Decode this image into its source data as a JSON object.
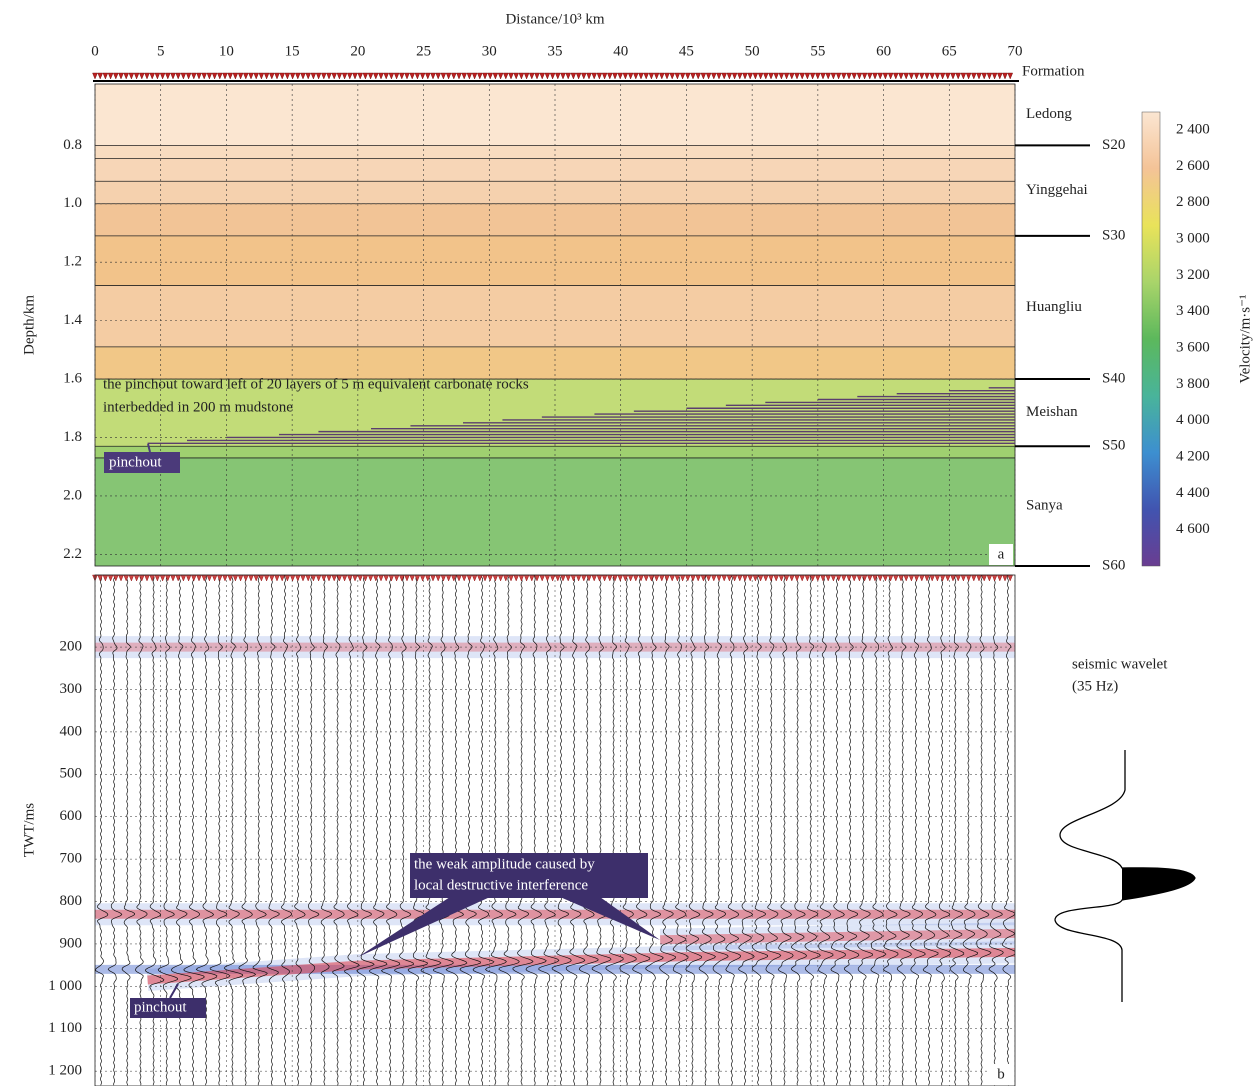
{
  "chart_data": [
    {
      "type": "layer-model",
      "x_label": "Distance/10³ km",
      "y_label": "Depth/km",
      "xlim": [
        0,
        70
      ],
      "xticks": [
        0,
        5,
        10,
        15,
        20,
        25,
        30,
        35,
        40,
        45,
        50,
        55,
        60,
        65,
        70
      ],
      "ylim": [
        0.59,
        2.24
      ],
      "yticks": [
        0.8,
        {
          "value": 1,
          "label": "1.0"
        },
        1.2,
        1.4,
        1.6,
        1.8,
        {
          "value": 2,
          "label": "2.0"
        },
        2.2
      ],
      "grid": true,
      "column_header": "Formation",
      "formations": [
        "Ledong",
        "Yinggehai",
        "Huangliu",
        "Meishan",
        "Sanya"
      ],
      "surfaces": [
        {
          "name": "S20",
          "depth": 0.8
        },
        {
          "name": "S30",
          "depth": 1.11
        },
        {
          "name": "S40",
          "depth": 1.6
        },
        {
          "name": "S50",
          "depth": 1.83
        },
        {
          "name": "S60",
          "depth": 2.24
        }
      ],
      "boundaries": [
        0.8,
        0.845,
        0.923,
        1.0,
        1.11,
        1.28,
        1.49,
        1.6,
        1.83,
        1.87
      ],
      "layer_colors": [
        "#fbe6d1",
        "#f8dcc0",
        "#f7d6b7",
        "#f5d1ae",
        "#f2c496",
        "#f2c38a",
        "#f4cca3",
        "#f1c787",
        "#c2dc78",
        "#9fd070",
        "#86c574"
      ],
      "wedge": {
        "x_start": [
          4,
          7,
          10,
          14,
          17,
          21,
          24,
          28,
          31,
          34,
          38,
          41,
          45,
          48,
          51,
          55,
          58,
          61,
          65,
          68
        ],
        "depth": [
          1.82,
          1.81,
          1.8,
          1.79,
          1.78,
          1.77,
          1.76,
          1.75,
          1.74,
          1.73,
          1.72,
          1.71,
          1.7,
          1.69,
          1.68,
          1.67,
          1.66,
          1.65,
          1.64,
          1.63
        ],
        "color": "#5b3f6e"
      },
      "annotation": [
        "the pinchout toward left of 20 layers of 5 m equivalent carbonate rocks",
        "interbedded in 200 m mudstone"
      ],
      "pinchout_label": "pinchout",
      "panel_label": "a",
      "colorbar": {
        "label": "Velocity/m·s⁻¹",
        "clim": [
          2300,
          4800
        ],
        "ticks": [
          {
            "value": 2400,
            "label": "2 400"
          },
          {
            "value": 2600,
            "label": "2 600"
          },
          {
            "value": 2800,
            "label": "2 800"
          },
          {
            "value": 3000,
            "label": "3 000"
          },
          {
            "value": 3200,
            "label": "3 200"
          },
          {
            "value": 3400,
            "label": "3 400"
          },
          {
            "value": 3600,
            "label": "3 600"
          },
          {
            "value": 3800,
            "label": "3 800"
          },
          {
            "value": 4000,
            "label": "4 000"
          },
          {
            "value": 4200,
            "label": "4 200"
          },
          {
            "value": 4400,
            "label": "4 400"
          },
          {
            "value": 4600,
            "label": "4 600"
          }
        ],
        "colormap": [
          "#fbe6d2",
          "#f4c397",
          "#e9e35a",
          "#a9d46a",
          "#5cb85c",
          "#49b49a",
          "#3d8fd0",
          "#4154b0",
          "#6a3d91"
        ]
      }
    },
    {
      "type": "seismic",
      "y_label": "TWT/ms",
      "xlim": [
        0,
        70
      ],
      "xticks": [
        0,
        5,
        10,
        15,
        20,
        25,
        30,
        35,
        40,
        45,
        50,
        55,
        60,
        65,
        70
      ],
      "ylim": [
        30,
        1235
      ],
      "yticks": [
        200,
        300,
        400,
        500,
        600,
        700,
        800,
        900,
        {
          "value": 1000,
          "label": "1 000"
        },
        {
          "value": 1100,
          "label": "1 100"
        },
        {
          "value": 1200,
          "label": "1 200"
        }
      ],
      "grid": true,
      "reflectors": [
        {
          "x": [
            0,
            70
          ],
          "twt": [
            200,
            200
          ],
          "amplitude": 0.3
        },
        {
          "x": [
            0,
            70
          ],
          "twt": [
            830,
            830
          ],
          "amplitude": 0.8
        },
        {
          "x": [
            0,
            70
          ],
          "twt": [
            960,
            960
          ],
          "amplitude": -0.6
        },
        {
          "x": [
            4,
            20,
            45,
            70
          ],
          "twt": [
            985,
            950,
            930,
            920
          ],
          "amplitude": 1
        },
        {
          "x": [
            43,
            70
          ],
          "twt": [
            890,
            875
          ],
          "amplitude": 0.7
        }
      ],
      "annotation": [
        "the weak amplitude caused by",
        "local destructive interference"
      ],
      "pinchout_label": "pinchout",
      "panel_label": "b",
      "wavelet_label": [
        "seismic wavelet",
        "(35 Hz)"
      ]
    }
  ]
}
